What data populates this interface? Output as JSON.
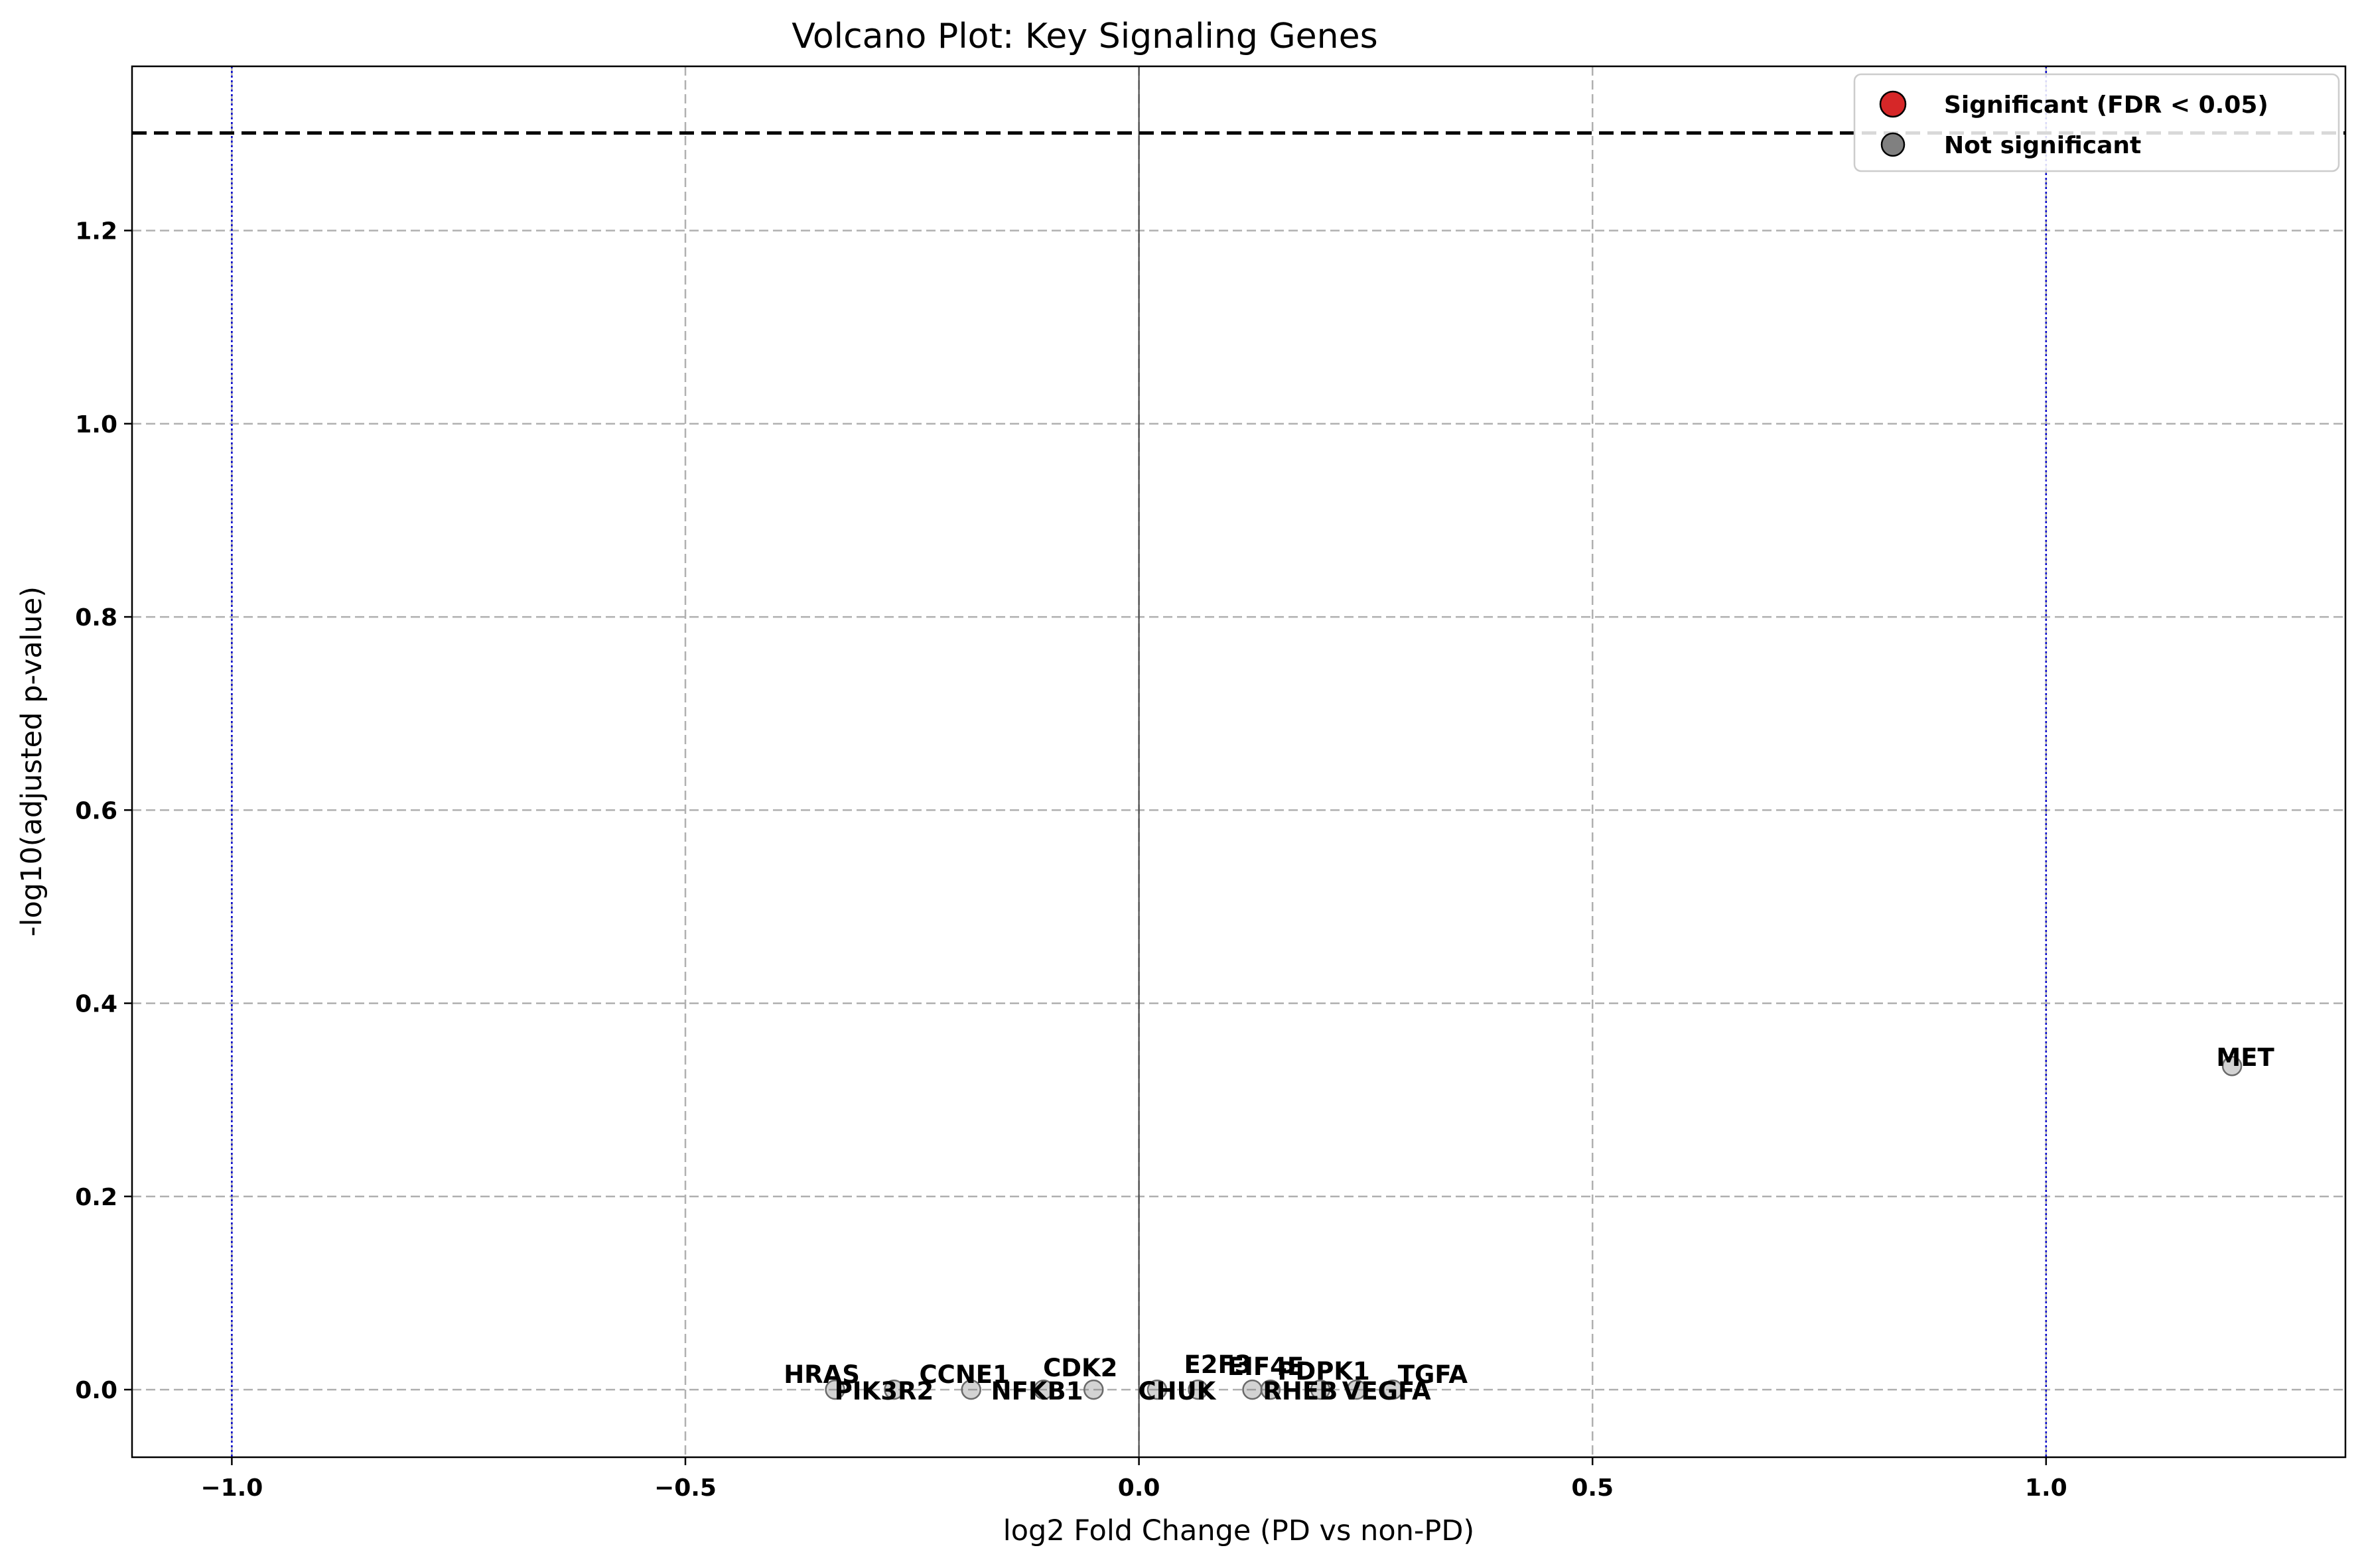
{
  "chart_data": {
    "type": "scatter",
    "title": "Volcano Plot: Key Signaling Genes",
    "xlabel": "log2 Fold Change (PD vs non-PD)",
    "ylabel": "-log10(adjusted p-value)",
    "xlim": [
      -1.11,
      1.33
    ],
    "ylim": [
      -0.07,
      1.37
    ],
    "x_ticks": [
      -1.0,
      -0.5,
      0.0,
      0.5,
      1.0
    ],
    "x_tick_labels": [
      "−1.0",
      "−0.5",
      "0.0",
      "0.5",
      "1.0"
    ],
    "y_ticks": [
      0.0,
      0.2,
      0.4,
      0.6,
      0.8,
      1.0,
      1.2
    ],
    "y_tick_labels": [
      "0.0",
      "0.2",
      "0.4",
      "0.6",
      "0.8",
      "1.0",
      "1.2"
    ],
    "grid": true,
    "reference_lines": {
      "significance_threshold_y": 1.301,
      "fold_change_thresholds_x": [
        -1.0,
        1.0
      ],
      "zero_x": 0.0
    },
    "legend": {
      "placement": "top-right",
      "entries": [
        {
          "label": "Significant (FDR < 0.05)",
          "color": "#d62728"
        },
        {
          "label": "Not significant",
          "color": "#808080"
        }
      ]
    },
    "colors": {
      "not_significant": "#808080",
      "significant": "#d62728",
      "threshold_line": "#000000",
      "fold_change_line": "#0000cc",
      "grid": "#b0b0b0"
    },
    "series": [
      {
        "name": "Not significant",
        "points": [
          {
            "gene": "HRAS",
            "x": -0.335,
            "y": 0.0
          },
          {
            "gene": "PIK3R2",
            "x": -0.27,
            "y": 0.0
          },
          {
            "gene": "CCNE1",
            "x": -0.185,
            "y": 0.0
          },
          {
            "gene": "NFKB1",
            "x": -0.105,
            "y": 0.0
          },
          {
            "gene": "CDK2",
            "x": -0.05,
            "y": 0.0
          },
          {
            "gene": "CHUK",
            "x": 0.02,
            "y": 0.0
          },
          {
            "gene": "E2F3",
            "x": 0.065,
            "y": 0.0
          },
          {
            "gene": "EIF4E",
            "x": 0.125,
            "y": 0.0
          },
          {
            "gene": "RHEB",
            "x": 0.145,
            "y": 0.0
          },
          {
            "gene": "PDPK1",
            "x": 0.2,
            "y": 0.0
          },
          {
            "gene": "VEGFA",
            "x": 0.24,
            "y": 0.0
          },
          {
            "gene": "TGFA",
            "x": 0.28,
            "y": 0.0
          },
          {
            "gene": "MET",
            "x": 1.205,
            "y": 0.335
          }
        ]
      },
      {
        "name": "Significant (FDR < 0.05)",
        "points": []
      }
    ]
  }
}
